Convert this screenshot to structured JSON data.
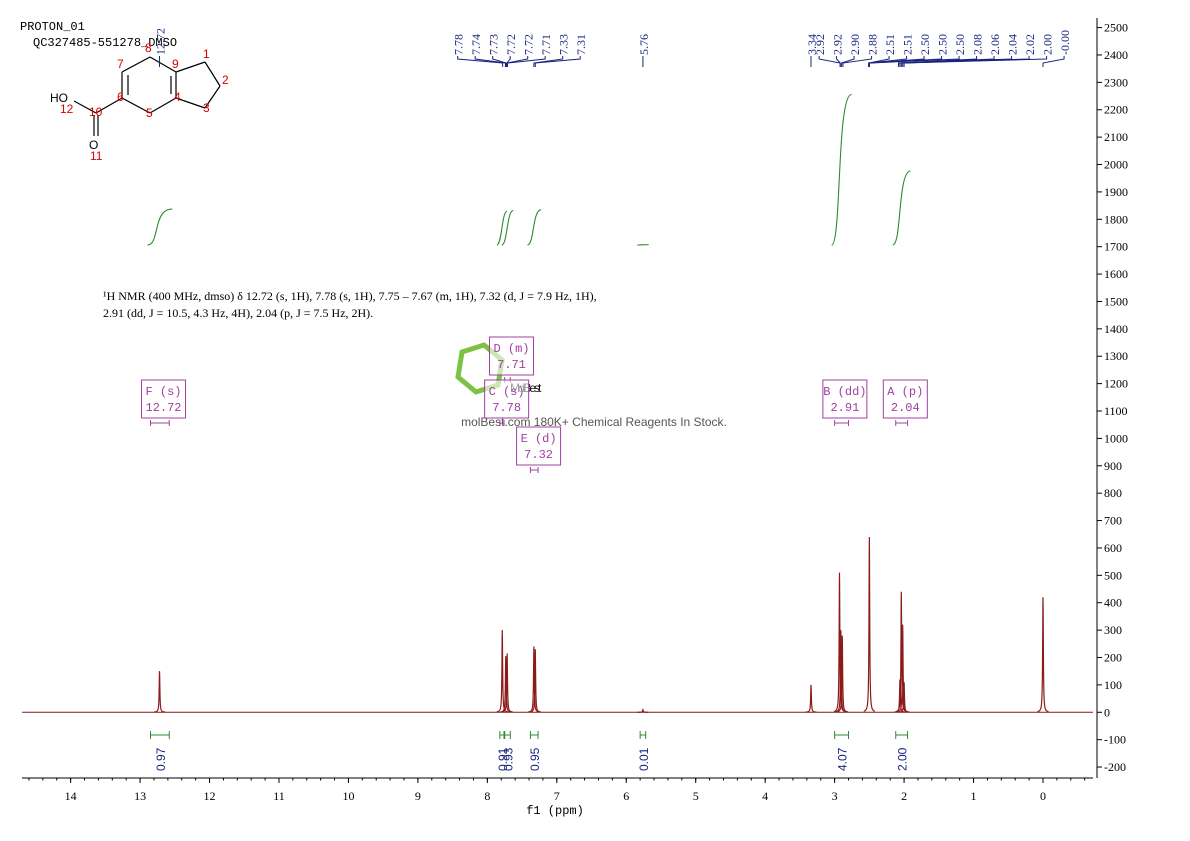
{
  "chart_data": {
    "type": "spectrum",
    "experiment": "PROTON_01",
    "sample": "QC327485-551278_DMSO",
    "description": [
      "¹H NMR (400 MHz, dmso) δ 12.72 (s, 1H), 7.78 (s, 1H), 7.75 – 7.67 (m, 1H), 7.32 (d, J = 7.9 Hz, 1H),",
      "2.91 (dd, J = 10.5, 4.3 Hz, 4H), 2.04 (p, J = 7.5 Hz, 2H)."
    ],
    "watermark": "MolBest",
    "watermark_caption": "molBest.com 180K+ Chemical Reagents In Stock.",
    "x_label": "f1 (ppm)",
    "xlim": [
      14.7,
      -0.72
    ],
    "xticks": [
      14,
      13,
      12,
      11,
      10,
      9,
      8,
      7,
      6,
      5,
      4,
      3,
      2,
      1,
      0
    ],
    "ylim": [
      -240,
      2535
    ],
    "yticks": [
      -200,
      -100,
      0,
      100,
      200,
      300,
      400,
      500,
      600,
      700,
      800,
      900,
      1000,
      1100,
      1200,
      1300,
      1400,
      1500,
      1600,
      1700,
      1800,
      1900,
      2000,
      2100,
      2200,
      2300,
      2400,
      2500
    ],
    "color": "#8b1a1a",
    "peaks": {
      "ppm": [
        12.72,
        7.785,
        7.735,
        7.715,
        7.33,
        7.31,
        5.76,
        3.34,
        2.93,
        2.91,
        2.89,
        2.5,
        2.06,
        2.04,
        2.02,
        2.0,
        0.0
      ],
      "intensity": [
        150,
        300,
        205,
        215,
        240,
        230,
        10,
        100,
        510,
        300,
        280,
        640,
        120,
        440,
        320,
        110,
        420
      ]
    },
    "peak_labels": [
      {
        "value": 12.72,
        "label": "12.72"
      },
      {
        "value": 7.78,
        "label": "7.78"
      },
      {
        "value": 7.74,
        "label": "7.74"
      },
      {
        "value": 7.73,
        "label": "7.73"
      },
      {
        "value": 7.72,
        "label": "7.72"
      },
      {
        "value": 7.72,
        "label": "7.72"
      },
      {
        "value": 7.71,
        "label": "7.71"
      },
      {
        "value": 7.33,
        "label": "7.33"
      },
      {
        "value": 7.31,
        "label": "7.31"
      },
      {
        "value": 5.76,
        "label": "5.76"
      },
      {
        "value": 3.34,
        "label": "3.34"
      },
      {
        "value": 2.92,
        "label": "2.92"
      },
      {
        "value": 2.92,
        "label": "2.92"
      },
      {
        "value": 2.9,
        "label": "2.90"
      },
      {
        "value": 2.88,
        "label": "2.88"
      },
      {
        "value": 2.51,
        "label": "2.51"
      },
      {
        "value": 2.51,
        "label": "2.51"
      },
      {
        "value": 2.5,
        "label": "2.50"
      },
      {
        "value": 2.5,
        "label": "2.50"
      },
      {
        "value": 2.5,
        "label": "2.50"
      },
      {
        "value": 2.08,
        "label": "2.08"
      },
      {
        "value": 2.06,
        "label": "2.06"
      },
      {
        "value": 2.04,
        "label": "2.04"
      },
      {
        "value": 2.02,
        "label": "2.02"
      },
      {
        "value": 2.0,
        "label": "2.00"
      },
      {
        "value": 0,
        "label": "-0.00"
      }
    ],
    "integrals": [
      {
        "from": 12.85,
        "to": 12.58,
        "value": 0.97
      },
      {
        "from": 7.82,
        "to": 7.76,
        "value": 0.91
      },
      {
        "from": 7.75,
        "to": 7.67,
        "value": 0.93
      },
      {
        "from": 7.38,
        "to": 7.27,
        "value": 0.95
      },
      {
        "from": 5.8,
        "to": 5.72,
        "value": 0.01
      },
      {
        "from": 3.0,
        "to": 2.8,
        "value": 4.07
      },
      {
        "from": 2.12,
        "to": 1.95,
        "value": {
          "value": 2,
          "label": "2.00"
        }
      }
    ],
    "multiplets": [
      {
        "label": "F (s)",
        "shift": 12.72,
        "from": 12.85,
        "to": 12.58
      },
      {
        "label": "D (m)",
        "shift": 7.71,
        "from": 7.75,
        "to": 7.67
      },
      {
        "label": "C (s)",
        "shift": 7.78,
        "from": 7.82,
        "to": 7.76
      },
      {
        "label": "E (d)",
        "shift": 7.32,
        "from": 7.38,
        "to": 7.27
      },
      {
        "label": "B (dd)",
        "shift": 2.91,
        "from": 3.0,
        "to": 2.8
      },
      {
        "label": "A (p)",
        "shift": 2.04,
        "from": 2.12,
        "to": 1.95
      }
    ],
    "structure": {
      "atoms": [
        "HO",
        "12",
        "10",
        "O",
        "11",
        "6",
        "7",
        "8",
        "9",
        "1",
        "2",
        "3",
        "4",
        "5"
      ]
    }
  }
}
